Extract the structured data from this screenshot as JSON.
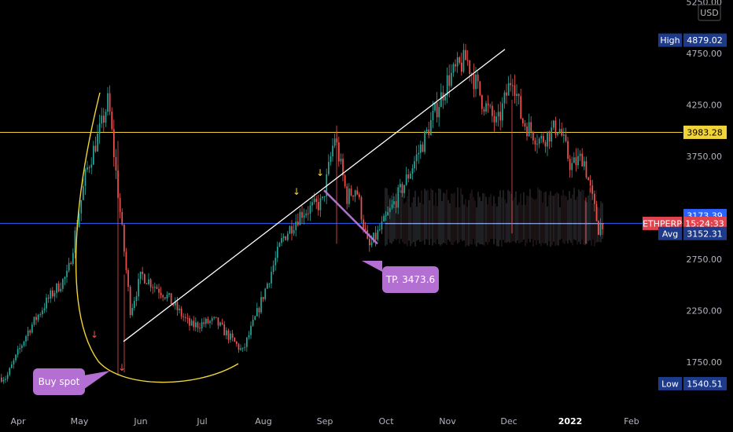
{
  "chart_data": {
    "type": "candlestick",
    "symbol_tag": "ETHPERP",
    "countdown": "15:24:33",
    "currency": "USD",
    "y_axis": {
      "ylim": [
        1480,
        5300
      ],
      "ticks": [
        {
          "value": 5250,
          "label": "5250.00"
        },
        {
          "value": 4750,
          "label": "4750.00"
        },
        {
          "value": 4250,
          "label": "4250.00"
        },
        {
          "value": 3750,
          "label": "3750.00"
        },
        {
          "value": 2750,
          "label": "2750.00"
        },
        {
          "value": 2250,
          "label": "2250.00"
        },
        {
          "value": 1750,
          "label": "1750.00"
        }
      ]
    },
    "x_axis": {
      "labels": [
        {
          "label": "Apr",
          "month": 0,
          "bold": false
        },
        {
          "label": "May",
          "month": 1,
          "bold": false
        },
        {
          "label": "Jun",
          "month": 2,
          "bold": false
        },
        {
          "label": "Jul",
          "month": 3,
          "bold": false
        },
        {
          "label": "Aug",
          "month": 4,
          "bold": false
        },
        {
          "label": "Sep",
          "month": 5,
          "bold": false
        },
        {
          "label": "Oct",
          "month": 6,
          "bold": false
        },
        {
          "label": "Nov",
          "month": 7,
          "bold": false
        },
        {
          "label": "Dec",
          "month": 8,
          "bold": false
        },
        {
          "label": "2022",
          "month": 9,
          "bold": true
        },
        {
          "label": "Feb",
          "month": 10,
          "bold": false
        }
      ]
    },
    "price_tags": [
      {
        "name": "High",
        "value": "4879.02",
        "price": 4879.02,
        "label_color": "#1e3a8a",
        "value_color": "#1e3a8a",
        "text_color": "#ffffff"
      },
      {
        "name": "",
        "value": "3983.28",
        "price": 3983.28,
        "label_color": "",
        "value_color": "#f0d43a",
        "text_color": "#000000"
      },
      {
        "name": "",
        "value": "3173.39",
        "price": 3173.39,
        "label_color": "",
        "value_color": "#2962ff",
        "text_color": "#ffffff"
      },
      {
        "name": "ETHPERP",
        "value": "15:24:33",
        "price": 3098,
        "label_color": "#e0444f",
        "value_color": "#e0444f",
        "text_color": "#ffffff"
      },
      {
        "name": "Avg",
        "value": "3152.31",
        "price": 3000,
        "label_color": "#1e3a8a",
        "value_color": "#1e3a8a",
        "text_color": "#ffffff"
      },
      {
        "name": "Low",
        "value": "1540.51",
        "price": 1540.51,
        "label_color": "#1e3a8a",
        "value_color": "#1e3a8a",
        "text_color": "#ffffff"
      }
    ],
    "horizontal_lines": [
      {
        "name": "resistance",
        "price": 3983.28,
        "color": "#f0d43a"
      },
      {
        "name": "current-price",
        "price": 3098,
        "color": "#2962ff"
      }
    ],
    "callouts": [
      {
        "name": "tp-callout",
        "text": "TP. 3473.6",
        "color": "#b36fd1"
      },
      {
        "name": "buy-spot-callout",
        "text": "Buy spot",
        "color": "#b36fd1"
      }
    ],
    "anchors": [
      {
        "month": -0.2,
        "price": 1600
      },
      {
        "month": 0.15,
        "price": 2050
      },
      {
        "month": 0.5,
        "price": 2380
      },
      {
        "month": 0.8,
        "price": 2600
      },
      {
        "month": 1.1,
        "price": 3600
      },
      {
        "month": 1.35,
        "price": 4050
      },
      {
        "month": 1.46,
        "price": 4300
      },
      {
        "month": 1.6,
        "price": 3500
      },
      {
        "month": 1.82,
        "price": 2250
      },
      {
        "month": 2.0,
        "price": 2600
      },
      {
        "month": 2.4,
        "price": 2400
      },
      {
        "month": 2.8,
        "price": 2100
      },
      {
        "month": 3.2,
        "price": 2150
      },
      {
        "month": 3.65,
        "price": 1850
      },
      {
        "month": 3.9,
        "price": 2250
      },
      {
        "month": 4.3,
        "price": 2950
      },
      {
        "month": 4.6,
        "price": 3200
      },
      {
        "month": 4.95,
        "price": 3300
      },
      {
        "month": 5.15,
        "price": 3950
      },
      {
        "month": 5.35,
        "price": 3350
      },
      {
        "month": 5.5,
        "price": 3450
      },
      {
        "month": 5.7,
        "price": 2850
      },
      {
        "month": 5.95,
        "price": 3100
      },
      {
        "month": 6.3,
        "price": 3500
      },
      {
        "month": 6.6,
        "price": 3900
      },
      {
        "month": 7.0,
        "price": 4500
      },
      {
        "month": 7.3,
        "price": 4700
      },
      {
        "month": 7.55,
        "price": 4300
      },
      {
        "month": 7.8,
        "price": 4050
      },
      {
        "month": 8.05,
        "price": 4550
      },
      {
        "month": 8.2,
        "price": 4100
      },
      {
        "month": 8.5,
        "price": 3900
      },
      {
        "month": 8.8,
        "price": 4050
      },
      {
        "month": 9.0,
        "price": 3650
      },
      {
        "month": 9.2,
        "price": 3750
      },
      {
        "month": 9.45,
        "price": 3050
      },
      {
        "month": 9.6,
        "price": 3200
      },
      {
        "month": 9.7,
        "price": 3100
      }
    ]
  }
}
